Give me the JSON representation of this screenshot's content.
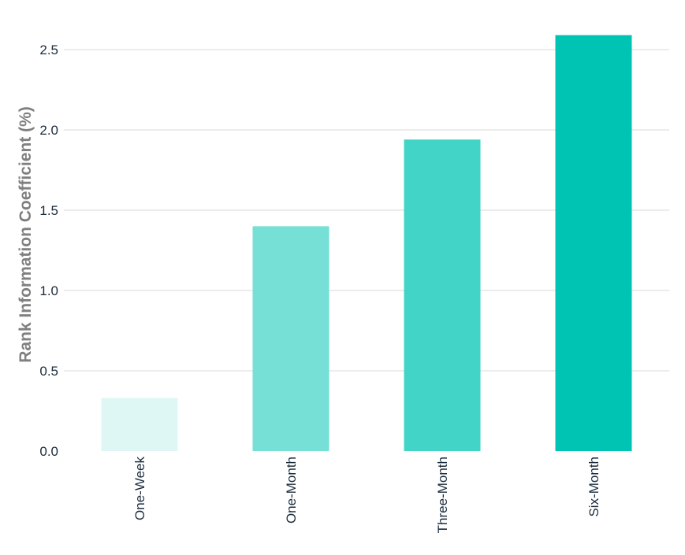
{
  "chart_data": {
    "type": "bar",
    "categories": [
      "One-Week",
      "One-Month",
      "Three-Month",
      "Six-Month"
    ],
    "values": [
      0.33,
      1.4,
      1.94,
      2.59
    ],
    "colors": [
      "#dff7f4",
      "#76dfd6",
      "#42d4c7",
      "#00c4b3"
    ],
    "title": "",
    "xlabel": "",
    "ylabel": "Rank Information Coefficient (%)",
    "ylim": [
      0,
      2.5
    ],
    "yticks": [
      "0.0",
      "0.5",
      "1.0",
      "1.5",
      "2.0",
      "2.5"
    ],
    "ytick_values": [
      0,
      0.5,
      1.0,
      1.5,
      2.0,
      2.5
    ],
    "grid": true
  }
}
